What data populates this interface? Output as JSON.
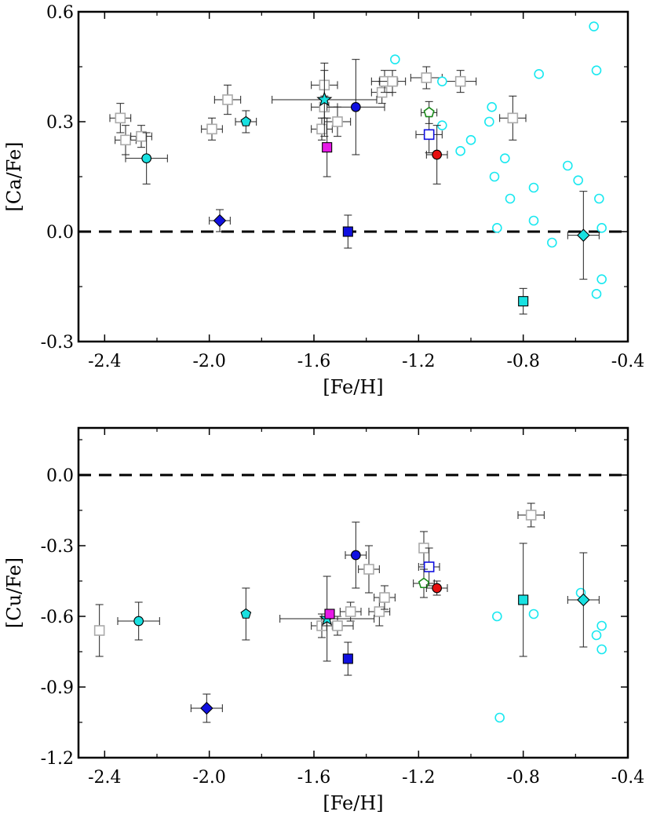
{
  "chart_data": [
    {
      "type": "scatter",
      "xlabel": "[Fe/H]",
      "ylabel": "[Ca/Fe]",
      "xlim": [
        -2.5,
        -0.4
      ],
      "ylim": [
        -0.3,
        0.6
      ],
      "xticks": [
        "-2.4",
        "-2.0",
        "-1.6",
        "-1.2",
        "-0.8",
        "-0.4"
      ],
      "yticks": [
        "-0.3",
        "0.0",
        "0.3",
        "0.6"
      ],
      "reference_line": {
        "y": 0.0,
        "style": "dashed"
      },
      "series": [
        {
          "marker": "open-square",
          "color": "#aaaaaa",
          "points": [
            {
              "x": -2.34,
              "y": 0.31,
              "xerr": 0.04,
              "yerr": 0.04
            },
            {
              "x": -2.32,
              "y": 0.25,
              "xerr": 0.04,
              "yerr": 0.04
            },
            {
              "x": -2.26,
              "y": 0.26,
              "xerr": 0.04,
              "yerr": 0.03
            },
            {
              "x": -1.99,
              "y": 0.28,
              "xerr": 0.04,
              "yerr": 0.03
            },
            {
              "x": -1.93,
              "y": 0.36,
              "xerr": 0.05,
              "yerr": 0.04
            },
            {
              "x": -1.56,
              "y": 0.4,
              "xerr": 0.05,
              "yerr": 0.04
            },
            {
              "x": -1.56,
              "y": 0.34,
              "xerr": 0.05,
              "yerr": 0.03
            },
            {
              "x": -1.57,
              "y": 0.28,
              "xerr": 0.04,
              "yerr": 0.03
            },
            {
              "x": -1.51,
              "y": 0.3,
              "xerr": 0.05,
              "yerr": 0.04
            },
            {
              "x": -1.34,
              "y": 0.38,
              "xerr": 0.04,
              "yerr": 0.03
            },
            {
              "x": -1.33,
              "y": 0.41,
              "xerr": 0.05,
              "yerr": 0.03
            },
            {
              "x": -1.3,
              "y": 0.41,
              "xerr": 0.05,
              "yerr": 0.03
            },
            {
              "x": -1.17,
              "y": 0.42,
              "xerr": 0.06,
              "yerr": 0.03
            },
            {
              "x": -1.04,
              "y": 0.41,
              "xerr": 0.06,
              "yerr": 0.03
            },
            {
              "x": -0.84,
              "y": 0.31,
              "xerr": 0.05,
              "yerr": 0.06
            }
          ]
        },
        {
          "marker": "open-circle",
          "color": "#19e8f0",
          "points": [
            {
              "x": -1.29,
              "y": 0.47
            },
            {
              "x": -1.11,
              "y": 0.41
            },
            {
              "x": -1.11,
              "y": 0.29
            },
            {
              "x": -1.04,
              "y": 0.22
            },
            {
              "x": -1.0,
              "y": 0.25
            },
            {
              "x": -0.92,
              "y": 0.34
            },
            {
              "x": -0.93,
              "y": 0.3
            },
            {
              "x": -0.91,
              "y": 0.15
            },
            {
              "x": -0.87,
              "y": 0.2
            },
            {
              "x": -0.85,
              "y": 0.09
            },
            {
              "x": -0.9,
              "y": 0.01
            },
            {
              "x": -0.76,
              "y": 0.12
            },
            {
              "x": -0.74,
              "y": 0.43
            },
            {
              "x": -0.76,
              "y": 0.03
            },
            {
              "x": -0.69,
              "y": -0.03
            },
            {
              "x": -0.63,
              "y": 0.18
            },
            {
              "x": -0.59,
              "y": 0.14
            },
            {
              "x": -0.53,
              "y": 0.56
            },
            {
              "x": -0.52,
              "y": 0.44
            },
            {
              "x": -0.51,
              "y": 0.09
            },
            {
              "x": -0.5,
              "y": 0.01
            },
            {
              "x": -0.5,
              "y": -0.13
            },
            {
              "x": -0.52,
              "y": -0.17
            }
          ]
        },
        {
          "marker": "circle",
          "color": "#19e0e0",
          "points": [
            {
              "x": -2.24,
              "y": 0.2,
              "xerr": 0.08,
              "yerr": 0.07
            }
          ]
        },
        {
          "marker": "pentagon",
          "color": "#19e0e0",
          "points": [
            {
              "x": -1.86,
              "y": 0.3,
              "xerr": 0.04,
              "yerr": 0.03
            }
          ]
        },
        {
          "marker": "diamond",
          "color": "#1010e0",
          "points": [
            {
              "x": -1.96,
              "y": 0.03,
              "xerr": 0.04,
              "yerr": 0.03
            }
          ]
        },
        {
          "marker": "star",
          "color": "#19e0e0",
          "points": [
            {
              "x": -1.56,
              "y": 0.36,
              "xerr": 0.2,
              "yerr": 0.1
            }
          ]
        },
        {
          "marker": "square",
          "color": "#e619e6",
          "points": [
            {
              "x": -1.55,
              "y": 0.23,
              "xerr": 0.0,
              "yerr": 0.08
            }
          ]
        },
        {
          "marker": "circle",
          "color": "#1010e0",
          "points": [
            {
              "x": -1.44,
              "y": 0.34,
              "xerr": 0.11,
              "yerr": 0.13
            }
          ]
        },
        {
          "marker": "square",
          "color": "#1010e0",
          "points": [
            {
              "x": -1.47,
              "y": 0.0,
              "xerr": 0.0,
              "yerr": 0.045
            }
          ]
        },
        {
          "marker": "open-square",
          "color": "#1010e0",
          "points": [
            {
              "x": -1.16,
              "y": 0.265,
              "xerr": 0.05,
              "yerr": 0.05
            }
          ]
        },
        {
          "marker": "open-pentagon",
          "color": "#1a8a1a",
          "points": [
            {
              "x": -1.16,
              "y": 0.325,
              "xerr": 0.03,
              "yerr": 0.03
            }
          ]
        },
        {
          "marker": "circle",
          "color": "#e61010",
          "points": [
            {
              "x": -1.13,
              "y": 0.21,
              "xerr": 0.04,
              "yerr": 0.08
            }
          ]
        },
        {
          "marker": "square",
          "color": "#19e0e0",
          "points": [
            {
              "x": -0.8,
              "y": -0.19,
              "xerr": 0.0,
              "yerr": 0.035
            }
          ]
        },
        {
          "marker": "diamond",
          "color": "#19e0e0",
          "points": [
            {
              "x": -0.57,
              "y": -0.01,
              "xerr": 0.06,
              "yerr": 0.12
            }
          ]
        }
      ]
    },
    {
      "type": "scatter",
      "xlabel": "[Fe/H]",
      "ylabel": "[Cu/Fe]",
      "xlim": [
        -2.5,
        -0.4
      ],
      "ylim": [
        -1.2,
        0.2
      ],
      "xticks": [
        "-2.4",
        "-2.0",
        "-1.6",
        "-1.2",
        "-0.8",
        "-0.4"
      ],
      "yticks": [
        "-1.2",
        "-0.9",
        "-0.6",
        "-0.3",
        "0.0"
      ],
      "reference_line": {
        "y": 0.0,
        "style": "dashed"
      },
      "series": [
        {
          "marker": "open-square",
          "color": "#aaaaaa",
          "points": [
            {
              "x": -2.42,
              "y": -0.66,
              "xerr": 0.0,
              "yerr": 0.11
            },
            {
              "x": -1.57,
              "y": -0.64,
              "xerr": 0.04,
              "yerr": 0.05
            },
            {
              "x": -1.51,
              "y": -0.64,
              "xerr": 0.06,
              "yerr": 0.04
            },
            {
              "x": -1.46,
              "y": -0.58,
              "xerr": 0.04,
              "yerr": 0.04
            },
            {
              "x": -1.39,
              "y": -0.4,
              "xerr": 0.04,
              "yerr": 0.1
            },
            {
              "x": -1.35,
              "y": -0.58,
              "xerr": 0.04,
              "yerr": 0.06
            },
            {
              "x": -1.33,
              "y": -0.52,
              "xerr": 0.04,
              "yerr": 0.05
            },
            {
              "x": -1.18,
              "y": -0.31,
              "xerr": 0.0,
              "yerr": 0.07
            },
            {
              "x": -0.77,
              "y": -0.17,
              "xerr": 0.05,
              "yerr": 0.05
            }
          ]
        },
        {
          "marker": "open-circle",
          "color": "#19e8f0",
          "points": [
            {
              "x": -0.9,
              "y": -0.6
            },
            {
              "x": -0.89,
              "y": -1.03
            },
            {
              "x": -0.76,
              "y": -0.59
            },
            {
              "x": -0.58,
              "y": -0.5
            },
            {
              "x": -0.52,
              "y": -0.68
            },
            {
              "x": -0.5,
              "y": -0.64
            },
            {
              "x": -0.5,
              "y": -0.74
            }
          ]
        },
        {
          "marker": "circle",
          "color": "#19e0e0",
          "points": [
            {
              "x": -2.27,
              "y": -0.62,
              "xerr": 0.08,
              "yerr": 0.08
            }
          ]
        },
        {
          "marker": "pentagon",
          "color": "#19e0e0",
          "points": [
            {
              "x": -1.86,
              "y": -0.59,
              "xerr": 0.0,
              "yerr": 0.11
            }
          ]
        },
        {
          "marker": "diamond",
          "color": "#1010e0",
          "points": [
            {
              "x": -2.01,
              "y": -0.99,
              "xerr": 0.06,
              "yerr": 0.06
            }
          ]
        },
        {
          "marker": "star",
          "color": "#19e0e0",
          "points": [
            {
              "x": -1.55,
              "y": -0.61,
              "xerr": 0.18,
              "yerr": 0.18
            }
          ]
        },
        {
          "marker": "square",
          "color": "#e619e6",
          "points": [
            {
              "x": -1.54,
              "y": -0.59,
              "xerr": 0.0,
              "yerr": 0.0
            }
          ]
        },
        {
          "marker": "circle",
          "color": "#1010e0",
          "points": [
            {
              "x": -1.44,
              "y": -0.34,
              "xerr": 0.04,
              "yerr": 0.14
            }
          ]
        },
        {
          "marker": "square",
          "color": "#1010e0",
          "points": [
            {
              "x": -1.47,
              "y": -0.78,
              "xerr": 0.0,
              "yerr": 0.07
            }
          ]
        },
        {
          "marker": "open-square",
          "color": "#1010e0",
          "points": [
            {
              "x": -1.16,
              "y": -0.39,
              "xerr": 0.04,
              "yerr": 0.08
            }
          ]
        },
        {
          "marker": "open-pentagon",
          "color": "#1a8a1a",
          "points": [
            {
              "x": -1.18,
              "y": -0.46,
              "xerr": 0.04,
              "yerr": 0.06
            }
          ]
        },
        {
          "marker": "circle",
          "color": "#e61010",
          "points": [
            {
              "x": -1.13,
              "y": -0.48,
              "xerr": 0.04,
              "yerr": 0.03
            }
          ]
        },
        {
          "marker": "square",
          "color": "#19e0e0",
          "points": [
            {
              "x": -0.8,
              "y": -0.53,
              "xerr": 0.0,
              "yerr": 0.24
            }
          ]
        },
        {
          "marker": "diamond",
          "color": "#19e0e0",
          "points": [
            {
              "x": -0.57,
              "y": -0.53,
              "xerr": 0.06,
              "yerr": 0.2
            }
          ]
        }
      ]
    }
  ]
}
